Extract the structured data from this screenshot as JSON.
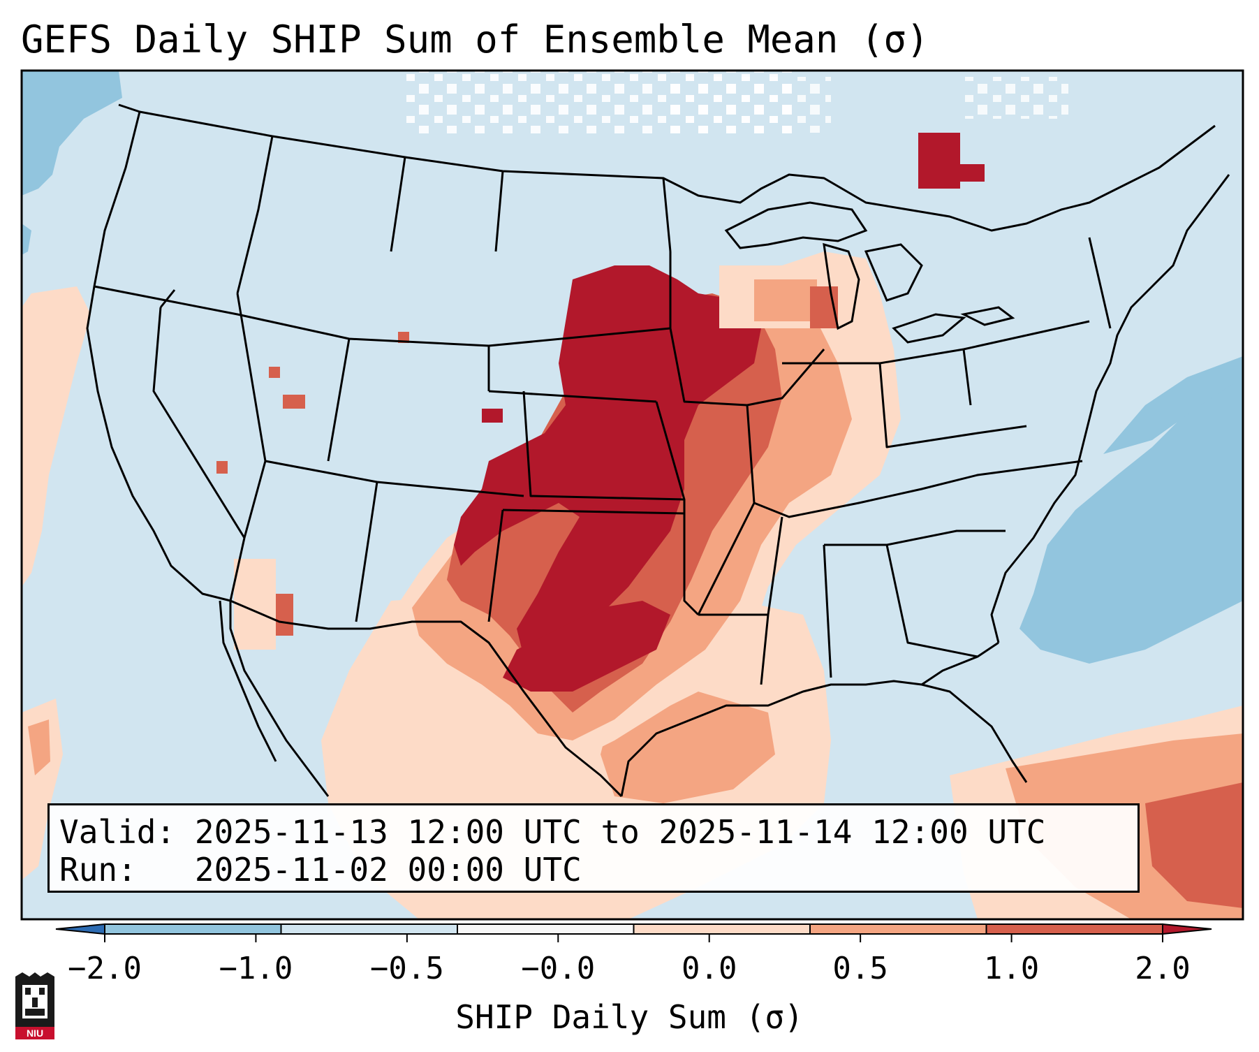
{
  "title": "GEFS Daily SHIP Sum of Ensemble Mean (σ)",
  "valid_label": "Valid:",
  "valid_value": "2025-11-13 12:00 UTC to 2025-11-14 12:00 UTC",
  "run_label": "Run:",
  "run_value": "2025-11-02 00:00 UTC",
  "colorbar": {
    "label": "SHIP Daily Sum (σ)",
    "ticks": [
      "−2.0",
      "−1.0",
      "−0.5",
      "−0.0",
      "0.0",
      "0.5",
      "1.0",
      "2.0"
    ],
    "colors": [
      "#2d6cb3",
      "#92c5de",
      "#d1e5f0",
      "#f7f7f7",
      "#fddbc7",
      "#f4a582",
      "#d6604d",
      "#b2182b"
    ]
  },
  "map_field": {
    "background": "#d1e5f0",
    "regions": [
      {
        "name": "plains-max",
        "value": 2.0,
        "color": "#b2182b"
      },
      {
        "name": "plains-high",
        "value": 1.0,
        "color": "#d6604d"
      },
      {
        "name": "plains-moderate",
        "value": 0.5,
        "color": "#f4a582"
      },
      {
        "name": "gulf-low",
        "value": 0.0,
        "color": "#fddbc7"
      },
      {
        "name": "atlantic-negative",
        "value": -1.0,
        "color": "#92c5de"
      }
    ]
  },
  "logo_text": "NIU"
}
